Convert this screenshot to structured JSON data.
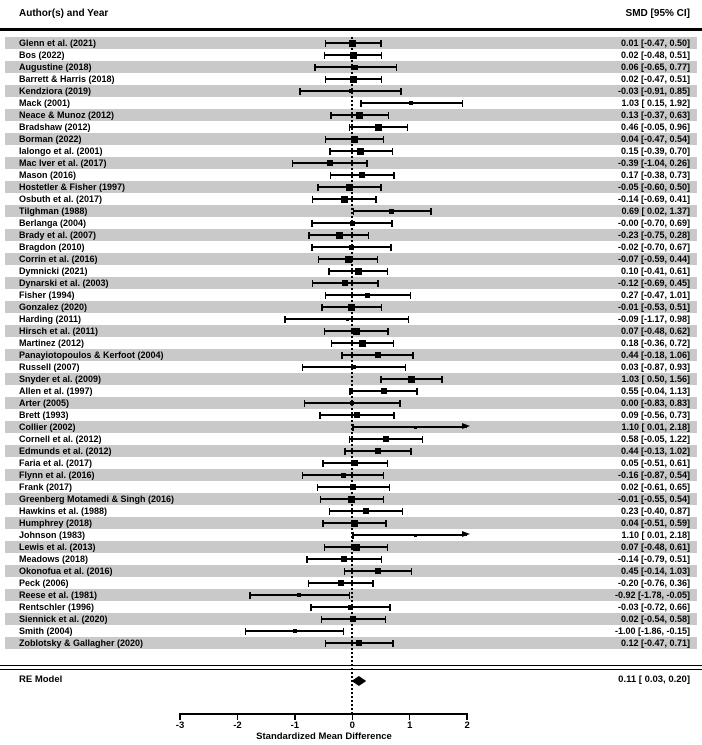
{
  "header": {
    "left": "Author(s) and Year",
    "right": "SMD [95% CI]"
  },
  "summary_row": {
    "label": "RE Model",
    "text": "0.11 [ 0.03,  0.20]"
  },
  "axis": {
    "title": "Standardized Mean Difference",
    "ticks": [
      -3,
      -2,
      -1,
      0,
      1,
      2
    ]
  },
  "colors": {
    "band": "#c9c9c9",
    "ink": "#000000",
    "background": "#ffffff"
  },
  "chart_data": {
    "type": "forest",
    "title": "",
    "xlabel": "Standardized Mean Difference",
    "xlim": [
      -3,
      2
    ],
    "zero_line": 0,
    "legend": "none",
    "value_column_header": "SMD [95% CI]",
    "label_column_header": "Author(s) and Year",
    "studies": [
      {
        "label": "Glenn et al. (2021)",
        "smd": 0.01,
        "ci_low": -0.47,
        "ci_high": 0.5,
        "text": "0.01 [-0.47,  0.50]"
      },
      {
        "label": "Bos (2022)",
        "smd": 0.02,
        "ci_low": -0.48,
        "ci_high": 0.51,
        "text": "0.02 [-0.48,  0.51]"
      },
      {
        "label": "Augustine (2018)",
        "smd": 0.06,
        "ci_low": -0.65,
        "ci_high": 0.77,
        "text": "0.06 [-0.65,  0.77]"
      },
      {
        "label": "Barrett & Harris (2018)",
        "smd": 0.02,
        "ci_low": -0.47,
        "ci_high": 0.51,
        "text": "0.02 [-0.47,  0.51]"
      },
      {
        "label": "Kendziora (2019)",
        "smd": -0.03,
        "ci_low": -0.91,
        "ci_high": 0.85,
        "text": "-0.03 [-0.91,  0.85]"
      },
      {
        "label": "Mack (2001)",
        "smd": 1.03,
        "ci_low": 0.15,
        "ci_high": 1.92,
        "text": "1.03 [ 0.15,  1.92]"
      },
      {
        "label": "Neace & Munoz (2012)",
        "smd": 0.13,
        "ci_low": -0.37,
        "ci_high": 0.63,
        "text": "0.13 [-0.37,  0.63]"
      },
      {
        "label": "Bradshaw (2012)",
        "smd": 0.46,
        "ci_low": -0.05,
        "ci_high": 0.96,
        "text": "0.46 [-0.05,  0.96]"
      },
      {
        "label": "Borman (2022)",
        "smd": 0.04,
        "ci_low": -0.47,
        "ci_high": 0.54,
        "text": "0.04 [-0.47,  0.54]"
      },
      {
        "label": "Ialongo et al. (2001)",
        "smd": 0.15,
        "ci_low": -0.39,
        "ci_high": 0.7,
        "text": "0.15 [-0.39,  0.70]"
      },
      {
        "label": "Mac Iver et al. (2017)",
        "smd": -0.39,
        "ci_low": -1.04,
        "ci_high": 0.26,
        "text": "-0.39 [-1.04,  0.26]"
      },
      {
        "label": "Mason (2016)",
        "smd": 0.17,
        "ci_low": -0.38,
        "ci_high": 0.73,
        "text": "0.17 [-0.38,  0.73]"
      },
      {
        "label": "Hostetler & Fisher (1997)",
        "smd": -0.05,
        "ci_low": -0.6,
        "ci_high": 0.5,
        "text": "-0.05 [-0.60,  0.50]"
      },
      {
        "label": "Osbuth et al. (2017)",
        "smd": -0.14,
        "ci_low": -0.69,
        "ci_high": 0.41,
        "text": "-0.14 [-0.69,  0.41]"
      },
      {
        "label": "Tilghman (1988)",
        "smd": 0.69,
        "ci_low": 0.02,
        "ci_high": 1.37,
        "text": "0.69 [ 0.02,  1.37]"
      },
      {
        "label": "Berlanga (2004)",
        "smd": -0.0,
        "ci_low": -0.7,
        "ci_high": 0.69,
        "text": "-0.00 [-0.70,  0.69]"
      },
      {
        "label": "Brady et al. (2007)",
        "smd": -0.23,
        "ci_low": -0.75,
        "ci_high": 0.28,
        "text": "-0.23 [-0.75,  0.28]"
      },
      {
        "label": "Bragdon (2010)",
        "smd": -0.02,
        "ci_low": -0.7,
        "ci_high": 0.67,
        "text": "-0.02 [-0.70,  0.67]"
      },
      {
        "label": "Corrin et al. (2016)",
        "smd": -0.07,
        "ci_low": -0.59,
        "ci_high": 0.44,
        "text": "-0.07 [-0.59,  0.44]"
      },
      {
        "label": "Dymnicki (2021)",
        "smd": 0.1,
        "ci_low": -0.41,
        "ci_high": 0.61,
        "text": "0.10 [-0.41,  0.61]"
      },
      {
        "label": "Dynarski et al. (2003)",
        "smd": -0.12,
        "ci_low": -0.69,
        "ci_high": 0.45,
        "text": "-0.12 [-0.69,  0.45]"
      },
      {
        "label": "Fisher (1994)",
        "smd": 0.27,
        "ci_low": -0.47,
        "ci_high": 1.01,
        "text": "0.27 [-0.47,  1.01]"
      },
      {
        "label": "Gonzalez (2020)",
        "smd": -0.01,
        "ci_low": -0.53,
        "ci_high": 0.51,
        "text": "-0.01 [-0.53,  0.51]"
      },
      {
        "label": "Harding (2011)",
        "smd": -0.09,
        "ci_low": -1.17,
        "ci_high": 0.98,
        "text": "-0.09 [-1.17,  0.98]"
      },
      {
        "label": "Hirsch et al. (2011)",
        "smd": 0.07,
        "ci_low": -0.48,
        "ci_high": 0.62,
        "text": "0.07 [-0.48,  0.62]"
      },
      {
        "label": "Martinez (2012)",
        "smd": 0.18,
        "ci_low": -0.36,
        "ci_high": 0.72,
        "text": "0.18 [-0.36,  0.72]"
      },
      {
        "label": "Panayiotopoulos & Kerfoot (2004)",
        "smd": 0.44,
        "ci_low": -0.18,
        "ci_high": 1.06,
        "text": "0.44 [-0.18,  1.06]"
      },
      {
        "label": "Russell (2007)",
        "smd": 0.03,
        "ci_low": -0.87,
        "ci_high": 0.93,
        "text": "0.03 [-0.87,  0.93]"
      },
      {
        "label": "Snyder et al. (2009)",
        "smd": 1.03,
        "ci_low": 0.5,
        "ci_high": 1.56,
        "text": "1.03 [ 0.50,  1.56]"
      },
      {
        "label": "Allen et al. (1997)",
        "smd": 0.55,
        "ci_low": -0.04,
        "ci_high": 1.13,
        "text": "0.55 [-0.04,  1.13]"
      },
      {
        "label": "Arter (2005)",
        "smd": 0.0,
        "ci_low": -0.83,
        "ci_high": 0.83,
        "text": "0.00 [-0.83,  0.83]"
      },
      {
        "label": "Brett (1993)",
        "smd": 0.09,
        "ci_low": -0.56,
        "ci_high": 0.73,
        "text": "0.09 [-0.56,  0.73]"
      },
      {
        "label": "Collier (2002)",
        "smd": 1.1,
        "ci_low": 0.01,
        "ci_high": 2.18,
        "text": "1.10 [ 0.01,  2.18]"
      },
      {
        "label": "Cornell et al. (2012)",
        "smd": 0.58,
        "ci_low": -0.05,
        "ci_high": 1.22,
        "text": "0.58 [-0.05,  1.22]"
      },
      {
        "label": "Edmunds et al. (2012)",
        "smd": 0.44,
        "ci_low": -0.13,
        "ci_high": 1.02,
        "text": "0.44 [-0.13,  1.02]"
      },
      {
        "label": "Faria et al. (2017)",
        "smd": 0.05,
        "ci_low": -0.51,
        "ci_high": 0.61,
        "text": "0.05 [-0.51,  0.61]"
      },
      {
        "label": "Flynn et al. (2016)",
        "smd": -0.16,
        "ci_low": -0.87,
        "ci_high": 0.54,
        "text": "-0.16 [-0.87,  0.54]"
      },
      {
        "label": "Frank (2017)",
        "smd": 0.02,
        "ci_low": -0.61,
        "ci_high": 0.65,
        "text": "0.02 [-0.61,  0.65]"
      },
      {
        "label": "Greenberg Motamedi & Singh (2016)",
        "smd": -0.01,
        "ci_low": -0.55,
        "ci_high": 0.54,
        "text": "-0.01 [-0.55,  0.54]"
      },
      {
        "label": "Hawkins et al. (1988)",
        "smd": 0.23,
        "ci_low": -0.4,
        "ci_high": 0.87,
        "text": "0.23 [-0.40,  0.87]"
      },
      {
        "label": "Humphrey (2018)",
        "smd": 0.04,
        "ci_low": -0.51,
        "ci_high": 0.59,
        "text": "0.04 [-0.51,  0.59]"
      },
      {
        "label": "Johnson (1983)",
        "smd": 1.1,
        "ci_low": 0.01,
        "ci_high": 2.18,
        "text": "1.10 [ 0.01,  2.18]"
      },
      {
        "label": "Lewis et al. (2013)",
        "smd": 0.07,
        "ci_low": -0.48,
        "ci_high": 0.61,
        "text": "0.07 [-0.48,  0.61]"
      },
      {
        "label": "Meadows (2018)",
        "smd": -0.14,
        "ci_low": -0.79,
        "ci_high": 0.51,
        "text": "-0.14 [-0.79,  0.51]"
      },
      {
        "label": "Okonofua et al. (2016)",
        "smd": 0.45,
        "ci_low": -0.14,
        "ci_high": 1.03,
        "text": "0.45 [-0.14,  1.03]"
      },
      {
        "label": "Peck (2006)",
        "smd": -0.2,
        "ci_low": -0.76,
        "ci_high": 0.36,
        "text": "-0.20 [-0.76,  0.36]"
      },
      {
        "label": "Reese et al. (1981)",
        "smd": -0.92,
        "ci_low": -1.78,
        "ci_high": -0.05,
        "text": "-0.92 [-1.78, -0.05]"
      },
      {
        "label": "Rentschler (1996)",
        "smd": -0.03,
        "ci_low": -0.72,
        "ci_high": 0.66,
        "text": "-0.03 [-0.72,  0.66]"
      },
      {
        "label": "Siennick et al. (2020)",
        "smd": 0.02,
        "ci_low": -0.54,
        "ci_high": 0.58,
        "text": "0.02 [-0.54,  0.58]"
      },
      {
        "label": "Smith (2004)",
        "smd": -1.0,
        "ci_low": -1.86,
        "ci_high": -0.15,
        "text": "-1.00 [-1.86, -0.15]"
      },
      {
        "label": "Zoblotsky & Gallagher (2020)",
        "smd": 0.12,
        "ci_low": -0.47,
        "ci_high": 0.71,
        "text": "0.12 [-0.47,  0.71]"
      }
    ],
    "summary": {
      "label": "RE Model",
      "smd": 0.11,
      "ci_low": 0.03,
      "ci_high": 0.2,
      "text": "0.11 [ 0.03,  0.20]"
    }
  }
}
